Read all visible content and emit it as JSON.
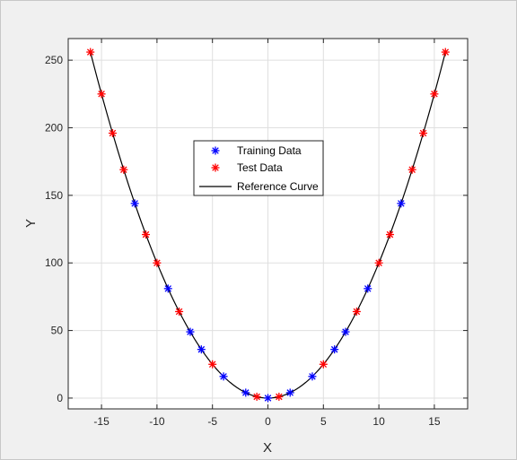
{
  "chart_data": {
    "type": "scatter",
    "xlabel": "X",
    "ylabel": "Y",
    "xlim": [
      -18,
      18
    ],
    "ylim": [
      -8,
      266
    ],
    "xticks": [
      -15,
      -10,
      -5,
      0,
      5,
      10,
      15
    ],
    "yticks": [
      0,
      50,
      100,
      150,
      200,
      250
    ],
    "grid": true,
    "legend_position": "center-left, upper",
    "series": [
      {
        "name": "Training Data",
        "marker": "asterisk",
        "color": "#0000ff",
        "x": [
          -12,
          -9,
          -7,
          -6,
          -4,
          -2,
          0,
          2,
          4,
          6,
          7,
          9,
          12
        ],
        "y": [
          144,
          81,
          49,
          36,
          16,
          4,
          0,
          4,
          16,
          36,
          49,
          81,
          144
        ]
      },
      {
        "name": "Test Data",
        "marker": "asterisk",
        "color": "#ff0000",
        "x": [
          -16,
          -15,
          -14,
          -13,
          -11,
          -10,
          -8,
          -5,
          -1,
          1,
          5,
          8,
          10,
          11,
          13,
          14,
          15,
          16
        ],
        "y": [
          256,
          225,
          196,
          169,
          121,
          100,
          64,
          25,
          1,
          1,
          25,
          64,
          100,
          121,
          169,
          196,
          225,
          256
        ]
      },
      {
        "name": "Reference Curve",
        "marker": "none",
        "color": "#000000",
        "function": "y = x^2",
        "x_range": [
          -16,
          16
        ]
      }
    ]
  }
}
